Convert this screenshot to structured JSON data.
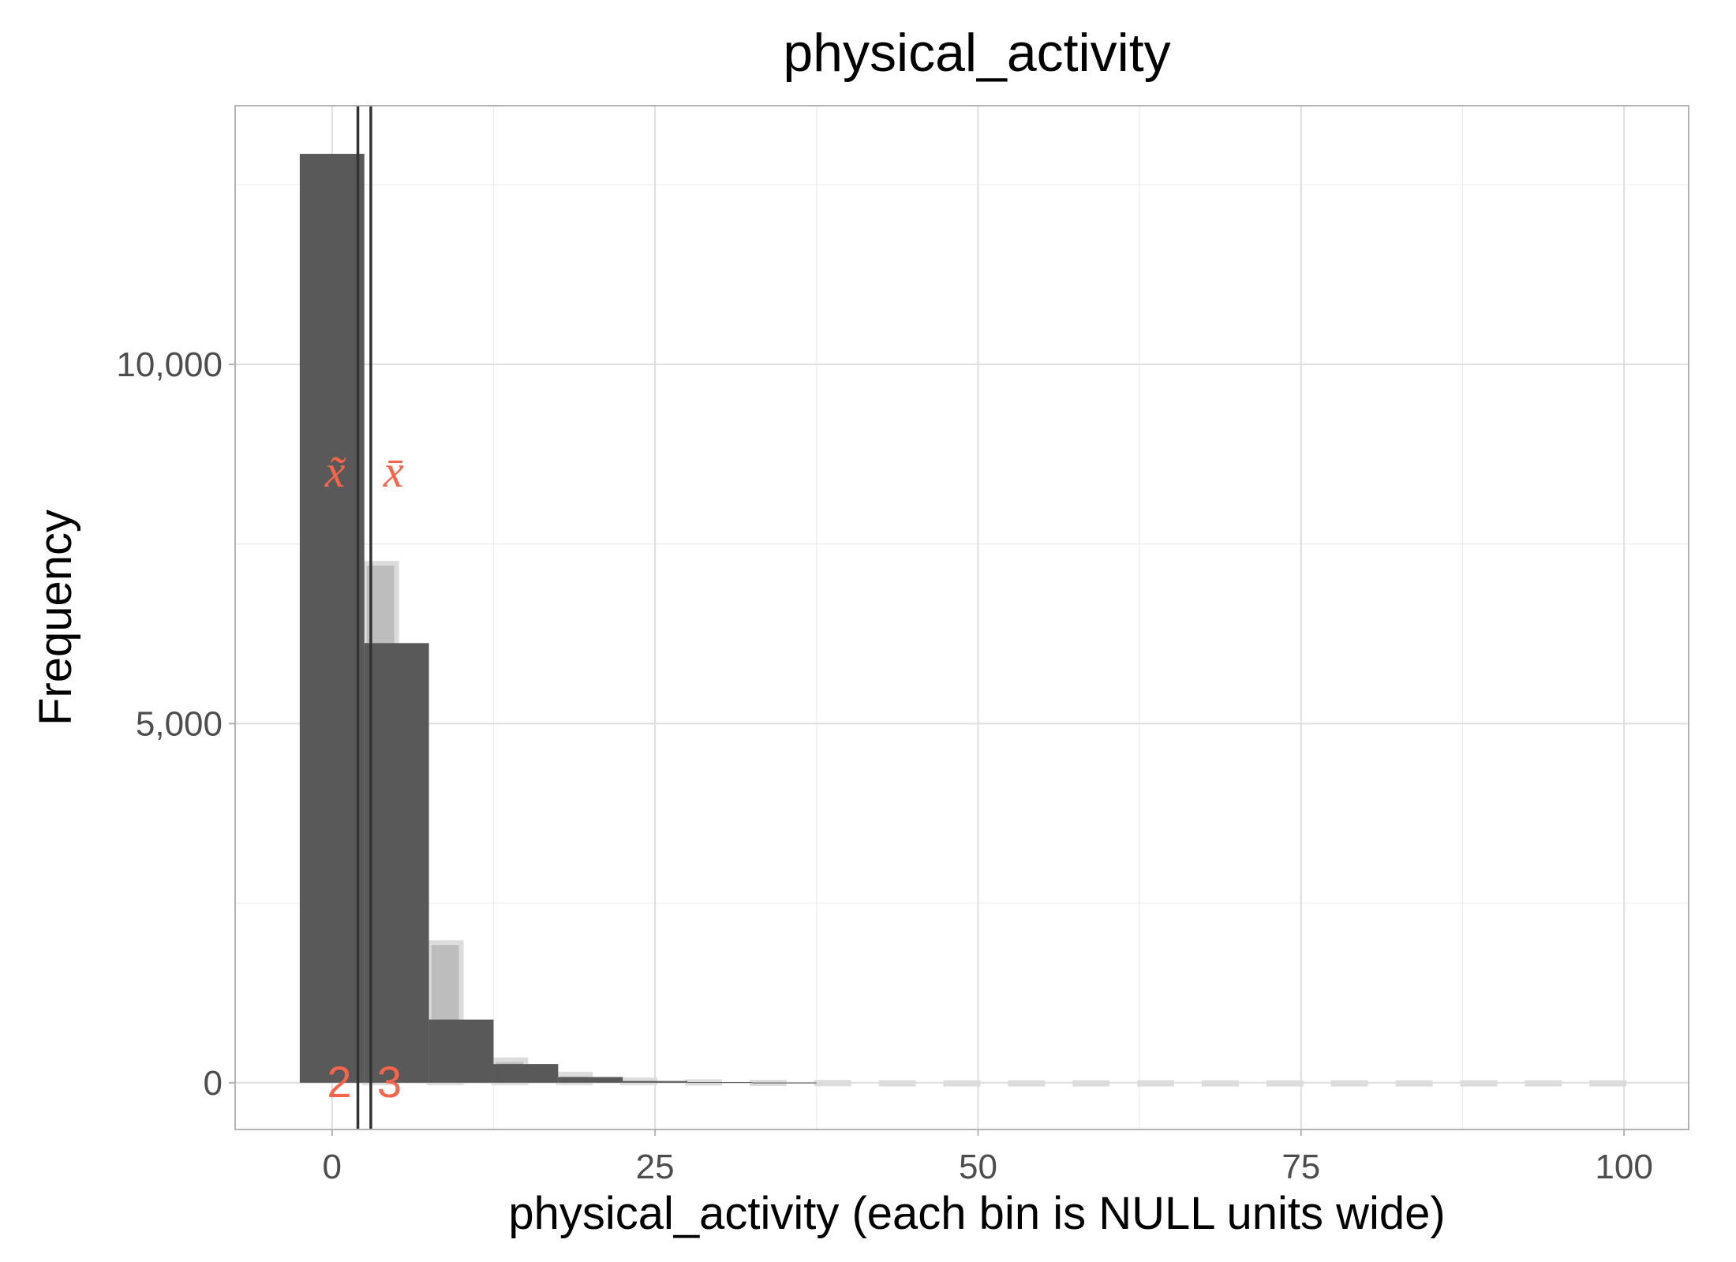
{
  "chart_data": {
    "type": "bar",
    "title": "physical_activity",
    "xlabel": "physical_activity (each bin is NULL units wide)",
    "ylabel": "Frequency",
    "xlim": [
      -7.5,
      105
    ],
    "ylim": [
      -650,
      13600
    ],
    "x_ticks": [
      0,
      25,
      50,
      75,
      100
    ],
    "x_tick_labels": [
      "0",
      "25",
      "50",
      "75",
      "100"
    ],
    "y_ticks": [
      0,
      5000,
      10000
    ],
    "y_tick_labels": [
      "0",
      "5,000",
      "10,000"
    ],
    "grid": true,
    "bins": {
      "width": 5,
      "centers": [
        0,
        5,
        10,
        15,
        20,
        25,
        30,
        35
      ],
      "values": [
        12930,
        6120,
        880,
        260,
        80,
        25,
        8,
        3
      ]
    },
    "background_histogram": {
      "width": 2.5,
      "centers": [
        3.75,
        8.75,
        13.75,
        18.75,
        23.75,
        28.75,
        33.75,
        38.75,
        43.75,
        48.75,
        53.75,
        58.75,
        63.75,
        68.75,
        73.75,
        78.75,
        83.75,
        88.75,
        93.75,
        98.75
      ],
      "values": [
        7230,
        1950,
        320,
        120,
        40,
        15,
        8,
        5,
        3,
        2,
        2,
        2,
        2,
        2,
        2,
        2,
        2,
        2,
        2,
        2
      ]
    },
    "reference_lines": [
      {
        "stat": "median",
        "symbol": "x̃",
        "value": 2,
        "label": "2"
      },
      {
        "stat": "mean",
        "symbol": "x̄",
        "value": 3,
        "label": "3"
      }
    ],
    "colors": {
      "bars": "#595959",
      "background_bars": "#bdbdbd",
      "annotation": "#f8654a",
      "grid": "#dedede",
      "panel_border": "#b3b3b3"
    }
  }
}
